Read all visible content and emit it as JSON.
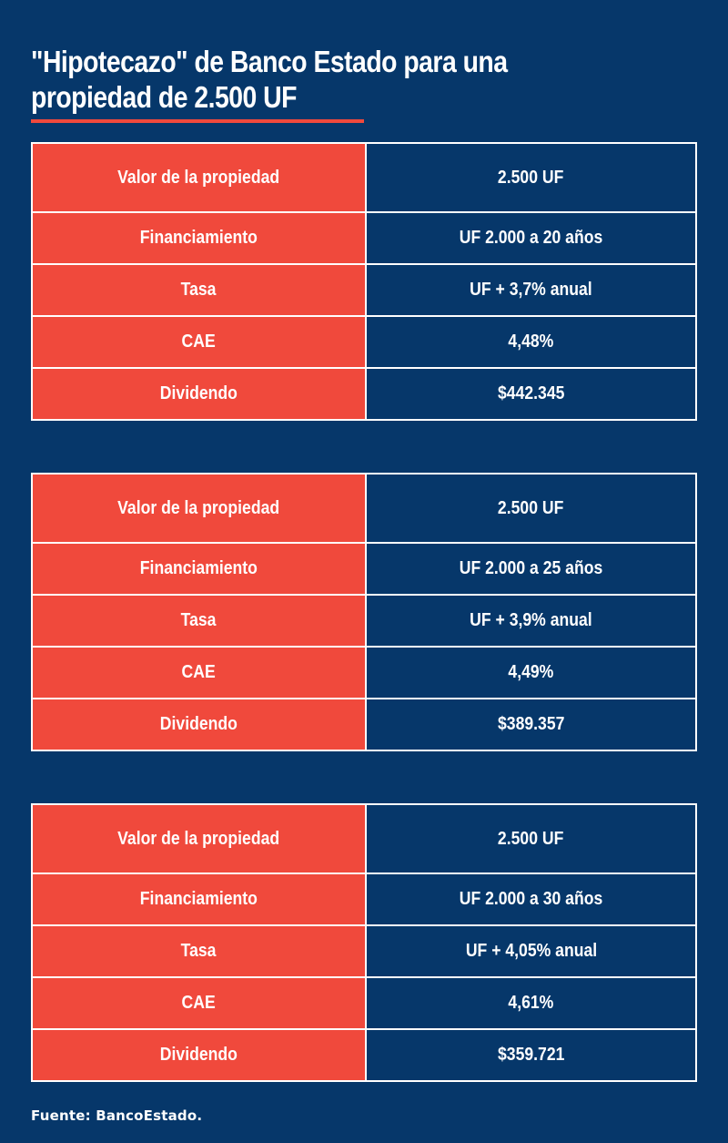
{
  "title": {
    "line1": "\"Hipotecazo\"  de Banco Estado para una",
    "line2": "propiedad de 2.500 UF"
  },
  "colors": {
    "background": "#06376a",
    "accent": "#f0493c",
    "border": "#ffffff"
  },
  "tables": [
    {
      "rows": [
        {
          "label": "Valor de la propiedad",
          "value": "2.500 UF"
        },
        {
          "label": "Financiamiento",
          "value": "UF 2.000 a 20 años"
        },
        {
          "label": "Tasa",
          "value": "UF + 3,7% anual"
        },
        {
          "label": "CAE",
          "value": "4,48%"
        },
        {
          "label": "Dividendo",
          "value": "$442.345"
        }
      ]
    },
    {
      "rows": [
        {
          "label": "Valor de la propiedad",
          "value": "2.500 UF"
        },
        {
          "label": "Financiamiento",
          "value": "UF 2.000 a 25 años"
        },
        {
          "label": "Tasa",
          "value": "UF + 3,9% anual"
        },
        {
          "label": "CAE",
          "value": "4,49%"
        },
        {
          "label": "Dividendo",
          "value": "$389.357"
        }
      ]
    },
    {
      "rows": [
        {
          "label": "Valor de la propiedad",
          "value": "2.500 UF"
        },
        {
          "label": "Financiamiento",
          "value": "UF 2.000 a 30 años"
        },
        {
          "label": "Tasa",
          "value": "UF + 4,05% anual"
        },
        {
          "label": "CAE",
          "value": "4,61%"
        },
        {
          "label": "Dividendo",
          "value": "$359.721"
        }
      ]
    }
  ],
  "source": "Fuente: BancoEstado."
}
